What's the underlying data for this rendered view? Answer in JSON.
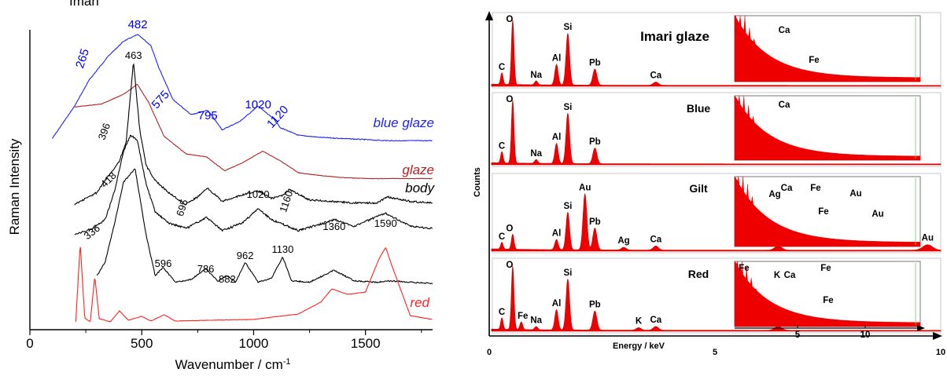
{
  "chart_data": [
    {
      "type": "line",
      "xlabel": "Wavenumber / cm",
      "xlabel_superscript": "-1",
      "ylabel": "Raman Intensity",
      "xlim": [
        0,
        1800
      ],
      "x_ticks": [
        "0",
        "500",
        "1000",
        "1500"
      ],
      "cut_top_text": "Imari",
      "series": [
        {
          "name": "blue glaze",
          "color": "#2222ee",
          "x": [
            100,
            200,
            265,
            350,
            420,
            482,
            540,
            575,
            640,
            720,
            795,
            860,
            940,
            1020,
            1090,
            1120,
            1200,
            1300,
            1400,
            1500,
            1600,
            1700,
            1800
          ],
          "y": [
            0.04,
            0.34,
            0.58,
            0.8,
            0.94,
            1.0,
            0.9,
            0.7,
            0.4,
            0.26,
            0.3,
            0.12,
            0.2,
            0.34,
            0.22,
            0.14,
            0.07,
            0.05,
            0.04,
            0.03,
            0.02,
            0.02,
            0.02
          ]
        },
        {
          "name": "glaze",
          "color": "#b22222",
          "x": [
            200,
            320,
            420,
            480,
            530,
            600,
            700,
            790,
            870,
            950,
            1040,
            1120,
            1200,
            1300,
            1400,
            1500,
            1600,
            1700,
            1800
          ],
          "y": [
            0.75,
            0.78,
            0.88,
            0.98,
            0.8,
            0.45,
            0.27,
            0.24,
            0.1,
            0.18,
            0.3,
            0.2,
            0.08,
            0.05,
            0.03,
            0.02,
            0.02,
            0.02,
            0.02
          ]
        },
        {
          "name": "body",
          "color": "#000000",
          "x": [
            200,
            300,
            360,
            396,
            430,
            463,
            490,
            520,
            560,
            620,
            695,
            750,
            795,
            860,
            940,
            1020,
            1080,
            1130,
            1160,
            1250,
            1350,
            1450,
            1550,
            1600,
            1700,
            1800
          ],
          "y": [
            0.04,
            0.12,
            0.25,
            0.32,
            0.45,
            1.0,
            0.55,
            0.3,
            0.2,
            0.12,
            0.04,
            0.09,
            0.15,
            0.06,
            0.1,
            0.13,
            0.08,
            0.1,
            0.14,
            0.07,
            0.06,
            0.05,
            0.05,
            0.09,
            0.06,
            0.05
          ]
        },
        {
          "name": "",
          "color": "#000000",
          "x": [
            200,
            280,
            336,
            380,
            418,
            450,
            480,
            520,
            560,
            620,
            700,
            790,
            860,
            950,
            1020,
            1080,
            1200,
            1300,
            1360,
            1450,
            1590,
            1700,
            1800
          ],
          "y": [
            0.04,
            0.1,
            0.18,
            0.45,
            0.8,
            0.95,
            0.9,
            0.5,
            0.25,
            0.15,
            0.1,
            0.2,
            0.08,
            0.15,
            0.28,
            0.18,
            0.08,
            0.14,
            0.18,
            0.12,
            0.24,
            0.12,
            0.1
          ]
        },
        {
          "name": "",
          "color": "#000000",
          "x": [
            300,
            336,
            380,
            418,
            470,
            520,
            560,
            596,
            650,
            720,
            786,
            840,
            882,
            920,
            962,
            1020,
            1080,
            1130,
            1170,
            1250,
            1360,
            1450,
            1550,
            1600,
            1700,
            1800
          ],
          "y": [
            0.1,
            0.2,
            0.5,
            0.8,
            0.9,
            0.4,
            0.1,
            0.16,
            0.05,
            0.07,
            0.15,
            0.06,
            0.1,
            0.05,
            0.2,
            0.05,
            0.08,
            0.24,
            0.06,
            0.05,
            0.14,
            0.06,
            0.05,
            0.06,
            0.05,
            0.04
          ]
        },
        {
          "name": "red",
          "color": "#ff2222",
          "x": [
            205,
            225,
            245,
            270,
            290,
            310,
            360,
            400,
            440,
            500,
            540,
            600,
            650,
            800,
            1000,
            1200,
            1300,
            1350,
            1420,
            1500,
            1560,
            1590,
            1620,
            1700,
            1800
          ],
          "y": [
            0.0,
            1.0,
            0.05,
            0.0,
            0.58,
            0.04,
            0.0,
            0.14,
            0.02,
            0.07,
            0.01,
            0.09,
            0.01,
            0.02,
            0.03,
            0.1,
            0.25,
            0.42,
            0.35,
            0.38,
            0.8,
            0.95,
            0.7,
            0.08,
            0.03
          ]
        }
      ],
      "peak_labels": [
        {
          "text": "265",
          "x": 265,
          "color": "#0000ee"
        },
        {
          "text": "482",
          "x": 482,
          "color": "#0000ee"
        },
        {
          "text": "575",
          "x": 575,
          "color": "#0000ee"
        },
        {
          "text": "795",
          "x": 795,
          "color": "#0000ee"
        },
        {
          "text": "1020",
          "x": 1020,
          "color": "#0000ee"
        },
        {
          "text": "1120",
          "x": 1120,
          "color": "#0000ee"
        },
        {
          "text": "463",
          "x": 463,
          "color": "#000000"
        },
        {
          "text": "396",
          "x": 396,
          "color": "#000000"
        },
        {
          "text": "418",
          "x": 418,
          "color": "#000000"
        },
        {
          "text": "695",
          "x": 695,
          "color": "#000000"
        },
        {
          "text": "1020",
          "x": 1020,
          "color": "#000000"
        },
        {
          "text": "1160",
          "x": 1160,
          "color": "#000000"
        },
        {
          "text": "336",
          "x": 336,
          "color": "#000000"
        },
        {
          "text": "1360",
          "x": 1360,
          "color": "#000000"
        },
        {
          "text": "1590",
          "x": 1590,
          "color": "#000000"
        },
        {
          "text": "596",
          "x": 596,
          "color": "#000000"
        },
        {
          "text": "786",
          "x": 786,
          "color": "#000000"
        },
        {
          "text": "882",
          "x": 882,
          "color": "#000000"
        },
        {
          "text": "962",
          "x": 962,
          "color": "#000000"
        },
        {
          "text": "1130",
          "x": 1130,
          "color": "#000000"
        }
      ]
    },
    {
      "type": "area",
      "xlabel": "Energy / keV",
      "ylabel": "Counts",
      "xlim": [
        0,
        10
      ],
      "x_ticks": [
        "0",
        "5",
        "10"
      ],
      "inset_x_ticks": [
        "5",
        "10"
      ],
      "title": "Imari  glaze",
      "fill_color": "#ee0000",
      "panels": [
        {
          "title": "",
          "peaks": [
            {
              "el": "C",
              "e": 0.28,
              "h": 0.18
            },
            {
              "el": "O",
              "e": 0.52,
              "h": 1.0
            },
            {
              "el": "Na",
              "e": 1.04,
              "h": 0.06
            },
            {
              "el": "Al",
              "e": 1.49,
              "h": 0.32
            },
            {
              "el": "Si",
              "e": 1.74,
              "h": 0.8
            },
            {
              "el": "Pb",
              "e": 2.34,
              "h": 0.25
            },
            {
              "el": "Ca",
              "e": 3.69,
              "h": 0.05
            }
          ],
          "inset_labels": [
            "Ca",
            "Fe"
          ]
        },
        {
          "title": "Blue",
          "peaks": [
            {
              "el": "C",
              "e": 0.28,
              "h": 0.18
            },
            {
              "el": "O",
              "e": 0.52,
              "h": 1.0
            },
            {
              "el": "Na",
              "e": 1.04,
              "h": 0.06
            },
            {
              "el": "Al",
              "e": 1.49,
              "h": 0.32
            },
            {
              "el": "Si",
              "e": 1.74,
              "h": 0.8
            },
            {
              "el": "Pb",
              "e": 2.34,
              "h": 0.25
            }
          ],
          "inset_labels": [
            "Ca"
          ]
        },
        {
          "title": "Gilt",
          "peaks": [
            {
              "el": "C",
              "e": 0.28,
              "h": 0.1
            },
            {
              "el": "O",
              "e": 0.52,
              "h": 0.22
            },
            {
              "el": "Al",
              "e": 1.49,
              "h": 0.15
            },
            {
              "el": "Si",
              "e": 1.74,
              "h": 0.55
            },
            {
              "el": "Au",
              "e": 2.12,
              "h": 0.82
            },
            {
              "el": "Pb",
              "e": 2.34,
              "h": 0.32
            },
            {
              "el": "Ag",
              "e": 2.98,
              "h": 0.04
            },
            {
              "el": "Ca",
              "e": 3.69,
              "h": 0.06
            },
            {
              "el": "Fe",
              "e": 6.4,
              "h": 0.06
            },
            {
              "el": "Au",
              "e": 9.71,
              "h": 0.08
            }
          ],
          "inset_labels": [
            "Ag",
            "Ca",
            "Fe",
            "Fe",
            "Au",
            "Au"
          ]
        },
        {
          "title": "Red",
          "peaks": [
            {
              "el": "C",
              "e": 0.28,
              "h": 0.18
            },
            {
              "el": "O",
              "e": 0.52,
              "h": 1.0
            },
            {
              "el": "Fe",
              "e": 0.71,
              "h": 0.12
            },
            {
              "el": "Na",
              "e": 1.04,
              "h": 0.05
            },
            {
              "el": "Al",
              "e": 1.49,
              "h": 0.32
            },
            {
              "el": "Si",
              "e": 1.74,
              "h": 0.8
            },
            {
              "el": "Pb",
              "e": 2.34,
              "h": 0.3
            },
            {
              "el": "K",
              "e": 3.31,
              "h": 0.04
            },
            {
              "el": "Ca",
              "e": 3.69,
              "h": 0.06
            },
            {
              "el": "Fe",
              "e": 6.4,
              "h": 0.06
            }
          ],
          "inset_labels": [
            "Fe",
            "K",
            "Ca",
            "Fe",
            "Fe"
          ]
        }
      ]
    }
  ]
}
